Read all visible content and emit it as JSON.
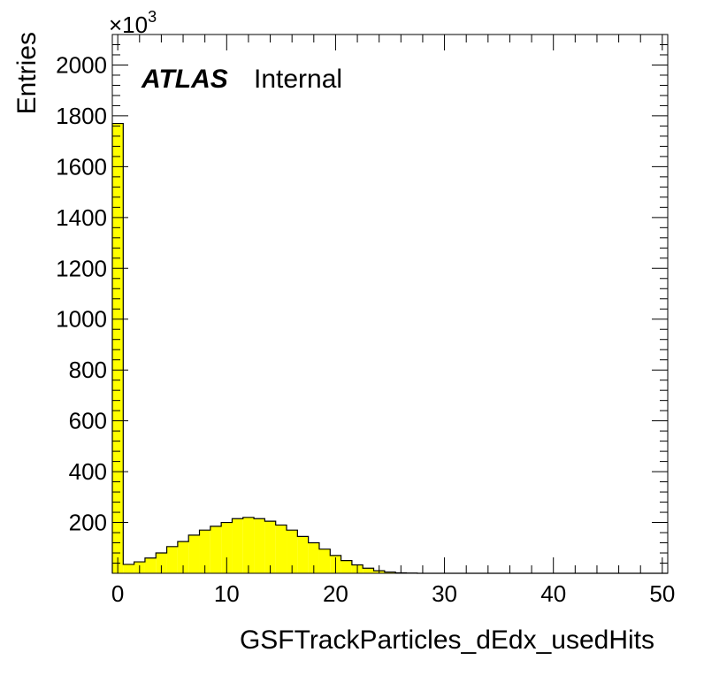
{
  "chart_data": {
    "type": "bar",
    "title": "",
    "xlabel": "GSFTrackParticles_dEdx_usedHits",
    "ylabel": "Entries",
    "y_multiplier_label": "×10",
    "y_multiplier_exponent": "3",
    "xlim": [
      -0.5,
      50.5
    ],
    "ylim": [
      0,
      2120
    ],
    "x_ticks": [
      "0",
      "10",
      "20",
      "30",
      "40",
      "50"
    ],
    "y_ticks": [
      "200",
      "400",
      "600",
      "800",
      "1000",
      "1200",
      "1400",
      "1600",
      "1800",
      "2000"
    ],
    "x_tick_values": [
      0,
      10,
      20,
      30,
      40,
      50
    ],
    "y_tick_values": [
      200,
      400,
      600,
      800,
      1000,
      1200,
      1400,
      1600,
      1800,
      2000
    ],
    "bin_width": 1,
    "bin_centers": [
      0,
      1,
      2,
      3,
      4,
      5,
      6,
      7,
      8,
      9,
      10,
      11,
      12,
      13,
      14,
      15,
      16,
      17,
      18,
      19,
      20,
      21,
      22,
      23,
      24,
      25,
      26,
      27,
      28,
      29,
      30,
      31,
      32,
      33,
      34,
      35,
      36,
      37,
      38,
      39,
      40,
      41,
      42,
      43,
      44,
      45,
      46,
      47,
      48,
      49,
      50
    ],
    "values": [
      1770,
      35,
      45,
      60,
      80,
      105,
      125,
      150,
      170,
      185,
      200,
      215,
      220,
      215,
      205,
      190,
      170,
      145,
      120,
      95,
      70,
      50,
      33,
      20,
      10,
      5,
      2,
      1,
      0,
      0,
      0,
      0,
      0,
      0,
      0,
      0,
      0,
      0,
      0,
      0,
      0,
      0,
      0,
      0,
      0,
      0,
      0,
      0,
      0,
      0,
      0
    ],
    "fill_color": "#ffff00",
    "line_color": "#000000",
    "grid": false,
    "legend": "none"
  },
  "labels": {
    "experiment": "ATLAS",
    "status": "Internal"
  }
}
